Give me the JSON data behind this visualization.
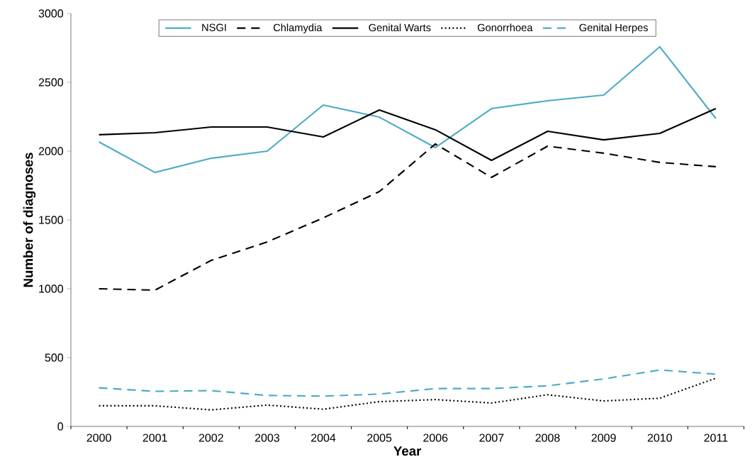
{
  "chart_data": {
    "type": "line",
    "xlabel": "Year",
    "ylabel": "Number of diagnoses",
    "categories": [
      "2000",
      "2001",
      "2002",
      "2003",
      "2004",
      "2005",
      "2006",
      "2007",
      "2008",
      "2009",
      "2010",
      "2011"
    ],
    "ylim": [
      0,
      3000
    ],
    "yticks": [
      0,
      500,
      1000,
      1500,
      2000,
      2500,
      3000
    ],
    "grid": false,
    "legend": "top",
    "marker": "none",
    "series": [
      {
        "name": "NSGI",
        "color": "#4bacc6",
        "line_style": "solid",
        "values": [
          2067,
          1845,
          1948,
          2000,
          2335,
          2247,
          2026,
          2309,
          2366,
          2407,
          2758,
          2237
        ]
      },
      {
        "name": "Chlamydia",
        "color": "#000000",
        "line_style": "dashed",
        "values": [
          1000,
          990,
          1206,
          1340,
          1515,
          1706,
          2052,
          1809,
          2036,
          1985,
          1918,
          1887
        ]
      },
      {
        "name": "Genital Warts",
        "color": "#000000",
        "line_style": "solid",
        "values": [
          2119,
          2134,
          2175,
          2175,
          2103,
          2299,
          2155,
          1933,
          2144,
          2082,
          2129,
          2309
        ]
      },
      {
        "name": "Gonorrhoea",
        "color": "#000000",
        "line_style": "dotted",
        "values": [
          150,
          150,
          120,
          155,
          125,
          180,
          195,
          170,
          230,
          185,
          205,
          350
        ]
      },
      {
        "name": "Genital Herpes",
        "color": "#4bacc6",
        "line_style": "dashed",
        "values": [
          280,
          255,
          260,
          225,
          220,
          235,
          275,
          275,
          295,
          345,
          410,
          380
        ]
      }
    ]
  }
}
